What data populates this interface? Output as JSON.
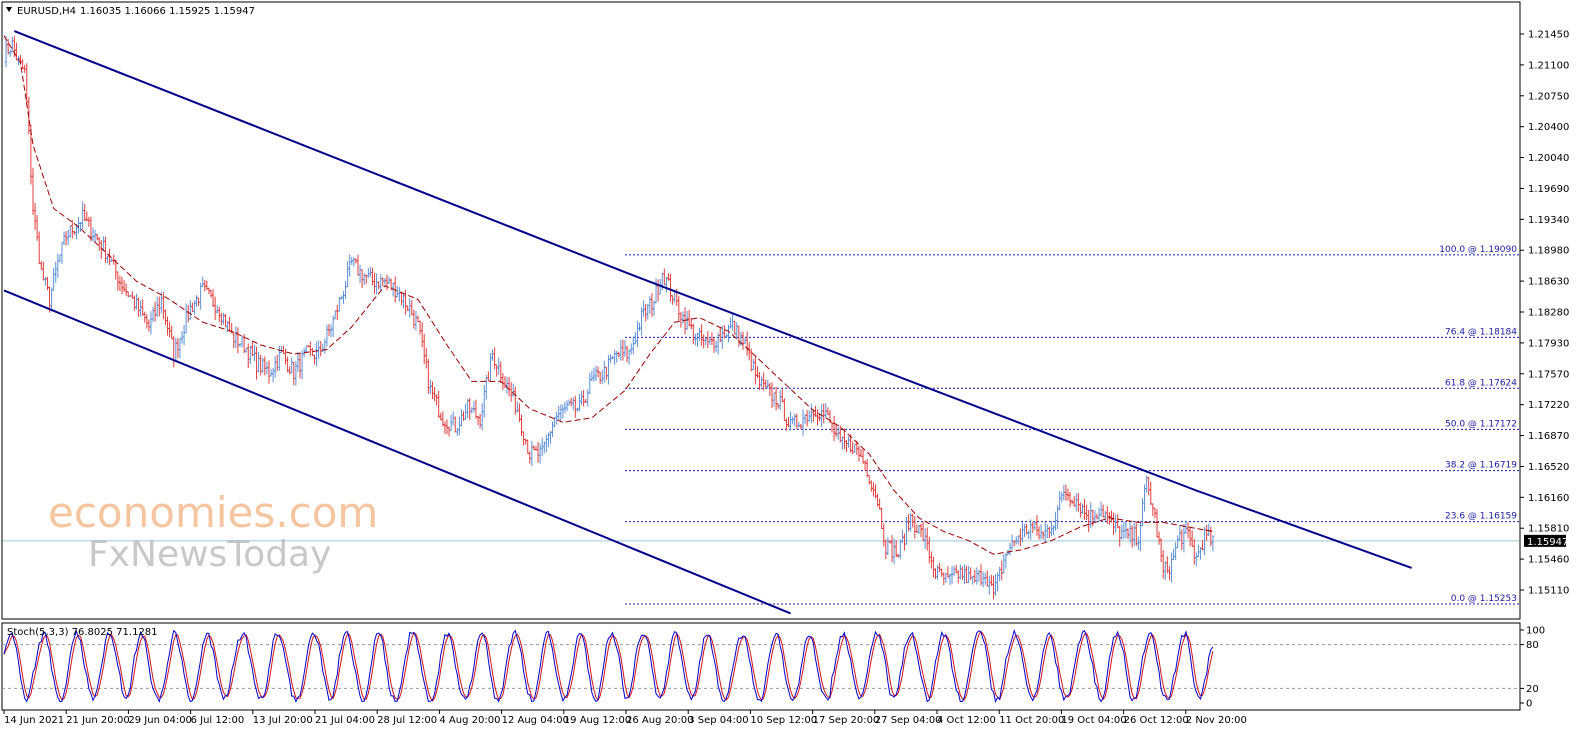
{
  "header": {
    "title": "EURUSD,H4",
    "ohlc": "1.16035 1.16066 1.15925 1.15947"
  },
  "oscillator": {
    "label": "Stoch(5,3,3) 76.8025 71.1281",
    "levels": [
      "100",
      "80",
      "20",
      "0"
    ]
  },
  "watermark": {
    "line1": "economies.com",
    "line2": "FxNewsToday"
  },
  "colors": {
    "bull": "#5b8fd6",
    "bear": "#e23c3c",
    "channel": "#00008b",
    "ma": "#9b0000",
    "fib": "#1a1aa0",
    "price_line": "#9ec9d8",
    "current_price_bg": "#000000",
    "stoch_main": "#0000cc",
    "stoch_signal": "#d21414",
    "watermark1": "#f5c5a0",
    "watermark2": "#c8c8c8"
  },
  "chart_data": {
    "type": "candlestick",
    "symbol": "EURUSD",
    "timeframe": "H4",
    "ylim": [
      1.1511,
      1.2165
    ],
    "y_ticks": [
      "1.21450",
      "1.21100",
      "1.20750",
      "1.20400",
      "1.20040",
      "1.19690",
      "1.19340",
      "1.18980",
      "1.18630",
      "1.18280",
      "1.17930",
      "1.17570",
      "1.17220",
      "1.16870",
      "1.16520",
      "1.16160",
      "1.15810",
      "1.15460",
      "1.15110"
    ],
    "x_ticks": [
      "14 Jun 2021",
      "21 Jun 20:00",
      "29 Jun 04:00",
      "6 Jul 12:00",
      "13 Jul 20:00",
      "21 Jul 04:00",
      "28 Jul 12:00",
      "4 Aug 20:00",
      "12 Aug 04:00",
      "19 Aug 12:00",
      "26 Aug 20:00",
      "3 Sep 04:00",
      "10 Sep 12:00",
      "17 Sep 20:00",
      "27 Sep 04:00",
      "4 Oct 12:00",
      "11 Oct 20:00",
      "19 Oct 04:00",
      "26 Oct 12:00",
      "2 Nov 20:00"
    ],
    "current_price": "1.15947",
    "close_anchors": [
      [
        0,
        1.213
      ],
      [
        4,
        1.214
      ],
      [
        7,
        1.212
      ],
      [
        10,
        1.211
      ],
      [
        12,
        1.204
      ],
      [
        14,
        1.196
      ],
      [
        18,
        1.189
      ],
      [
        22,
        1.186
      ],
      [
        26,
        1.19
      ],
      [
        30,
        1.193
      ],
      [
        34,
        1.194
      ],
      [
        38,
        1.195
      ],
      [
        44,
        1.193
      ],
      [
        50,
        1.191
      ],
      [
        56,
        1.188
      ],
      [
        62,
        1.186
      ],
      [
        70,
        1.183
      ],
      [
        76,
        1.186
      ],
      [
        82,
        1.18
      ],
      [
        90,
        1.185
      ],
      [
        96,
        1.187
      ],
      [
        100,
        1.186
      ],
      [
        104,
        1.185
      ],
      [
        110,
        1.182
      ],
      [
        116,
        1.181
      ],
      [
        122,
        1.179
      ],
      [
        128,
        1.178
      ],
      [
        134,
        1.18
      ],
      [
        140,
        1.178
      ],
      [
        146,
        1.18
      ],
      [
        152,
        1.18
      ],
      [
        158,
        1.183
      ],
      [
        164,
        1.187
      ],
      [
        168,
        1.19
      ],
      [
        172,
        1.189
      ],
      [
        178,
        1.188
      ],
      [
        184,
        1.188
      ],
      [
        190,
        1.187
      ],
      [
        196,
        1.185
      ],
      [
        200,
        1.183
      ],
      [
        206,
        1.176
      ],
      [
        212,
        1.173
      ],
      [
        218,
        1.172
      ],
      [
        224,
        1.174
      ],
      [
        230,
        1.173
      ],
      [
        236,
        1.18
      ],
      [
        242,
        1.177
      ],
      [
        248,
        1.174
      ],
      [
        254,
        1.169
      ],
      [
        260,
        1.169
      ],
      [
        266,
        1.173
      ],
      [
        272,
        1.174
      ],
      [
        278,
        1.174
      ],
      [
        284,
        1.177
      ],
      [
        290,
        1.178
      ],
      [
        296,
        1.18
      ],
      [
        302,
        1.18
      ],
      [
        308,
        1.184
      ],
      [
        314,
        1.186
      ],
      [
        318,
        1.189
      ],
      [
        322,
        1.187
      ],
      [
        328,
        1.184
      ],
      [
        334,
        1.182
      ],
      [
        340,
        1.181
      ],
      [
        346,
        1.182
      ],
      [
        352,
        1.183
      ],
      [
        358,
        1.181
      ],
      [
        364,
        1.177
      ],
      [
        368,
        1.176
      ],
      [
        374,
        1.175
      ],
      [
        380,
        1.172
      ],
      [
        386,
        1.173
      ],
      [
        392,
        1.174
      ],
      [
        398,
        1.173
      ],
      [
        404,
        1.17
      ],
      [
        410,
        1.17
      ],
      [
        416,
        1.168
      ],
      [
        422,
        1.164
      ],
      [
        426,
        1.159
      ],
      [
        432,
        1.158
      ],
      [
        438,
        1.162
      ],
      [
        444,
        1.16
      ],
      [
        450,
        1.156
      ],
      [
        456,
        1.155
      ],
      [
        462,
        1.156
      ],
      [
        468,
        1.155
      ],
      [
        474,
        1.156
      ],
      [
        478,
        1.1535
      ],
      [
        484,
        1.158
      ],
      [
        490,
        1.16
      ],
      [
        496,
        1.161
      ],
      [
        502,
        1.16
      ],
      [
        508,
        1.162
      ],
      [
        512,
        1.165
      ],
      [
        518,
        1.164
      ],
      [
        524,
        1.162
      ],
      [
        530,
        1.163
      ],
      [
        536,
        1.161
      ],
      [
        542,
        1.16
      ],
      [
        548,
        1.16
      ],
      [
        552,
        1.166
      ],
      [
        556,
        1.162
      ],
      [
        560,
        1.156
      ],
      [
        564,
        1.157
      ],
      [
        568,
        1.16
      ],
      [
        572,
        1.16
      ],
      [
        576,
        1.1575
      ],
      [
        580,
        1.16
      ],
      [
        584,
        1.1595
      ]
    ],
    "moving_average_anchors": [
      [
        0,
        1.215
      ],
      [
        8,
        1.212
      ],
      [
        14,
        1.203
      ],
      [
        24,
        1.196
      ],
      [
        36,
        1.194
      ],
      [
        50,
        1.191
      ],
      [
        64,
        1.188
      ],
      [
        80,
        1.186
      ],
      [
        96,
        1.1835
      ],
      [
        110,
        1.1825
      ],
      [
        124,
        1.181
      ],
      [
        140,
        1.18
      ],
      [
        156,
        1.1805
      ],
      [
        168,
        1.183
      ],
      [
        184,
        1.1875
      ],
      [
        200,
        1.186
      ],
      [
        214,
        1.181
      ],
      [
        226,
        1.177
      ],
      [
        240,
        1.177
      ],
      [
        254,
        1.174
      ],
      [
        270,
        1.1725
      ],
      [
        284,
        1.173
      ],
      [
        300,
        1.176
      ],
      [
        312,
        1.18
      ],
      [
        324,
        1.1835
      ],
      [
        336,
        1.184
      ],
      [
        350,
        1.1825
      ],
      [
        362,
        1.18
      ],
      [
        376,
        1.177
      ],
      [
        390,
        1.174
      ],
      [
        404,
        1.172
      ],
      [
        418,
        1.169
      ],
      [
        430,
        1.165
      ],
      [
        442,
        1.162
      ],
      [
        454,
        1.1605
      ],
      [
        466,
        1.1595
      ],
      [
        478,
        1.158
      ],
      [
        492,
        1.1585
      ],
      [
        506,
        1.1595
      ],
      [
        520,
        1.161
      ],
      [
        534,
        1.162
      ],
      [
        548,
        1.1615
      ],
      [
        560,
        1.1615
      ],
      [
        572,
        1.161
      ],
      [
        584,
        1.1605
      ]
    ],
    "channel": {
      "upper": [
        [
          5,
          1.2155
        ],
        [
          300,
          1.189
        ],
        [
          576,
          1.165
        ],
        [
          680,
          1.1565
        ]
      ],
      "lower": [
        [
          0,
          1.187
        ],
        [
          380,
          1.1515
        ]
      ]
    },
    "fibonacci": {
      "start_bar": 300,
      "levels": [
        {
          "label": "100.0 @ 1.19090",
          "price": 1.1909
        },
        {
          "label": "76.4 @ 1.18184",
          "price": 1.18184
        },
        {
          "label": "61.8 @ 1.17624",
          "price": 1.17624
        },
        {
          "label": "50.0 @ 1.17172",
          "price": 1.17172
        },
        {
          "label": "38.2 @ 1.16719",
          "price": 1.16719
        },
        {
          "label": "23.6 @ 1.16159",
          "price": 1.16159
        },
        {
          "label": "0.0 @ 1.15253",
          "price": 1.15253
        }
      ]
    },
    "stochastic": {
      "k": 76.8025,
      "d": 71.1281,
      "levels": [
        80,
        20
      ]
    }
  }
}
